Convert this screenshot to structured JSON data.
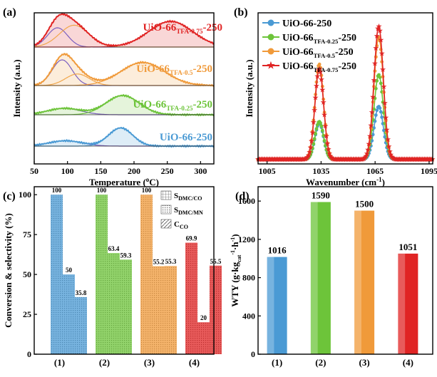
{
  "colors": {
    "blue": "#4a9ad4",
    "green": "#6dc43a",
    "orange": "#f09a3a",
    "red": "#e02424"
  },
  "chart_data": [
    {
      "panel": "(a)",
      "type": "line",
      "xlabel": "Temperature (oC)",
      "ylabel": "Intensity (a.u.)",
      "xlim": [
        50,
        320
      ],
      "xticks": [
        50,
        100,
        150,
        200,
        250,
        300
      ],
      "xtick_labels": [
        "50",
        "100",
        "150",
        "200",
        "250",
        "300"
      ],
      "series": [
        {
          "name": "UiO-66-250",
          "color": "#4a9ad4",
          "peaks": [
            {
              "center": 97,
              "height": 0.25,
              "width": 25
            },
            {
              "center": 180,
              "height": 0.85,
              "width": 18
            }
          ]
        },
        {
          "name": "UiO-66TFA-0.25-250",
          "color": "#6dc43a",
          "peaks": [
            {
              "center": 95,
              "height": 0.3,
              "width": 25
            },
            {
              "center": 183,
              "height": 0.9,
              "width": 25
            }
          ]
        },
        {
          "name": "UiO-66TFA-0.5-250",
          "color": "#f09a3a",
          "peaks": [
            {
              "center": 92,
              "height": 1.0,
              "width": 15
            },
            {
              "center": 115,
              "height": 0.45,
              "width": 18
            },
            {
              "center": 213,
              "height": 0.9,
              "width": 33
            }
          ]
        },
        {
          "name": "UiO-66TFA-0.75-250",
          "color": "#e02424",
          "peaks": [
            {
              "center": 85,
              "height": 0.75,
              "width": 15
            },
            {
              "center": 110,
              "height": 0.85,
              "width": 22
            },
            {
              "center": 255,
              "height": 1.0,
              "width": 33
            }
          ]
        }
      ]
    },
    {
      "panel": "(b)",
      "type": "line",
      "xlabel": "Wavenumber (cm-1)",
      "ylabel": "Intensity (a.u.)",
      "xlim": [
        1000,
        1097
      ],
      "xticks": [
        1005,
        1035,
        1065,
        1095
      ],
      "xtick_labels": [
        "1005",
        "1035",
        "1065",
        "1095"
      ],
      "legend": "top-left",
      "series": [
        {
          "name": "UiO-66-250",
          "color": "#4a9ad4",
          "marker": "circle",
          "peak1_height": 0.24,
          "peak2_height": 0.35
        },
        {
          "name": "UiO-66TFA-0.25-250",
          "color": "#6dc43a",
          "marker": "circle",
          "peak1_height": 0.25,
          "peak2_height": 0.56
        },
        {
          "name": "UiO-66TFA-0.5-250",
          "color": "#f09a3a",
          "marker": "circle",
          "peak1_height": 0.63,
          "peak2_height": 0.81
        },
        {
          "name": "UiO-66TFA-0.75-250",
          "color": "#e02424",
          "marker": "star",
          "peak1_height": 0.6,
          "peak2_height": 0.88
        }
      ],
      "peak_positions": [
        1034,
        1067
      ],
      "baseline": 0.03
    },
    {
      "panel": "(c)",
      "type": "bar",
      "ylabel": "Conversion & selectivity (%)",
      "ylim": [
        0,
        105
      ],
      "yticks": [
        0,
        25,
        50,
        75,
        100
      ],
      "categories": [
        "(1)",
        "(2)",
        "(3)",
        "(4)"
      ],
      "series": [
        {
          "name": "SDMC/CO",
          "values": [
            100,
            100,
            100,
            69.9
          ]
        },
        {
          "name": "SDMC/MN",
          "values": [
            50,
            63.4,
            55.2,
            20
          ]
        },
        {
          "name": "CCO",
          "values": [
            35.8,
            59.3,
            55.3,
            55.5
          ]
        }
      ],
      "value_labels": [
        [
          "100",
          "50",
          "35.8"
        ],
        [
          "100",
          "63.4",
          "59.3"
        ],
        [
          "100",
          "55.2",
          "55.3"
        ],
        [
          "69.9",
          "20",
          "55.5"
        ]
      ],
      "legend": "top-right"
    },
    {
      "panel": "(d)",
      "type": "bar",
      "ylabel": "WTY (g·kgcat-1·h-1)",
      "ylim": [
        0,
        1750
      ],
      "yticks": [
        0,
        400,
        800,
        1200,
        1600
      ],
      "categories": [
        "(1)",
        "(2)",
        "(3)",
        "(4)"
      ],
      "values": [
        1016,
        1590,
        1500,
        1051
      ],
      "value_labels": [
        "1016",
        "1590",
        "1500",
        "1051"
      ]
    }
  ]
}
